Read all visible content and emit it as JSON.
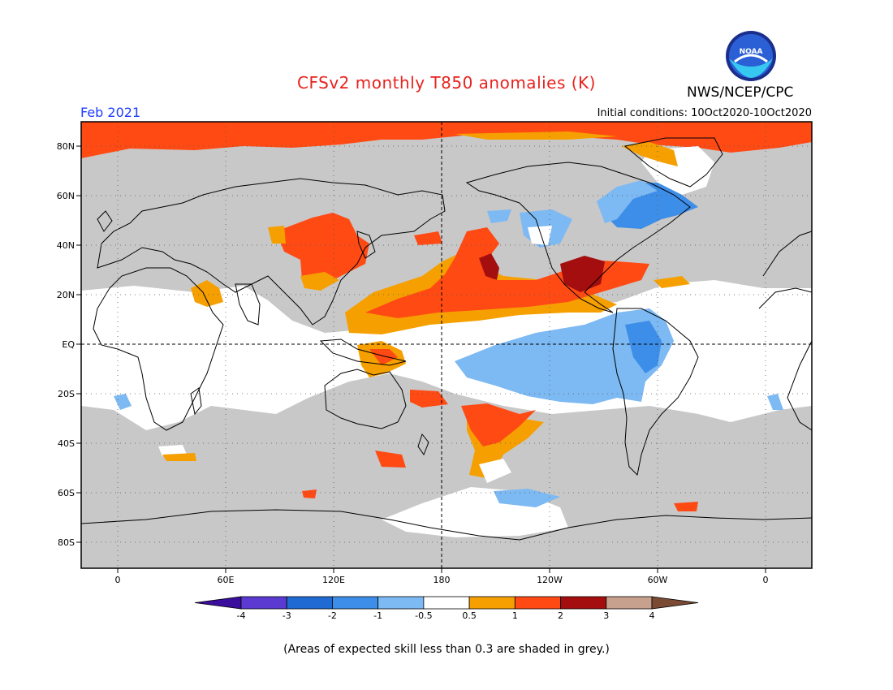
{
  "header": {
    "title": "CFSv2 monthly T850 anomalies (K)",
    "organization": "NWS/NCEP/CPC",
    "month": "Feb 2021",
    "initial_conditions": "Initial conditions: 10Oct2020-10Oct2020"
  },
  "logo": {
    "text": "NOAA",
    "icon": "noaa-logo"
  },
  "axes": {
    "lat_labels": [
      "80N",
      "60N",
      "40N",
      "20N",
      "EQ",
      "20S",
      "40S",
      "60S",
      "80S"
    ],
    "lon_labels": [
      "0",
      "60E",
      "120E",
      "180",
      "120W",
      "60W",
      "0"
    ]
  },
  "colorbar": {
    "labels": [
      "-4",
      "-3",
      "-2",
      "-1",
      "-0.5",
      "0.5",
      "1",
      "2",
      "3",
      "4"
    ],
    "colors": [
      "#3a0d9c",
      "#5a3ad0",
      "#1f6bd3",
      "#3d8ee8",
      "#7db9f2",
      "#ffffff",
      "#f5a000",
      "#ff4a14",
      "#a50e0e",
      "#c8a08e",
      "#7a4a34"
    ]
  },
  "colors": {
    "grey_mask": "#c8c8c8",
    "frame": "#000000"
  },
  "footnote": "(Areas of expected skill less than 0.3 are shaded in grey.)"
}
